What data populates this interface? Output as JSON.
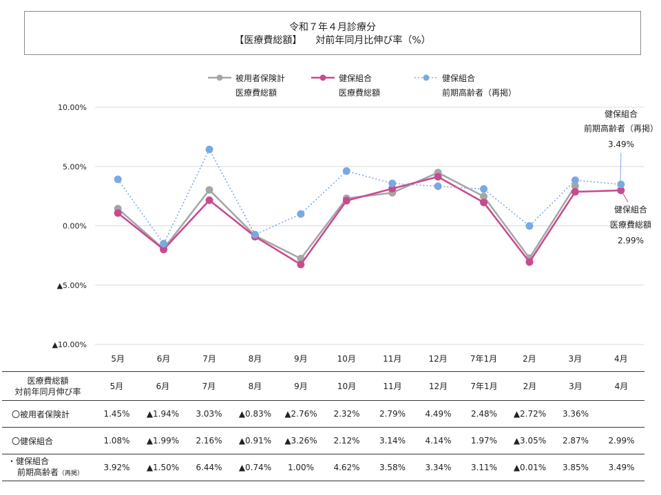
{
  "title": {
    "line1": "令和７年４月診療分",
    "line2_part1": "【医療費総額】",
    "line2_part2": "対前年同月比伸び率（%）"
  },
  "chart_data": {
    "type": "line",
    "categories": [
      "5月",
      "6月",
      "7月",
      "8月",
      "9月",
      "10月",
      "11月",
      "12月",
      "7年1月",
      "2月",
      "3月",
      "4月"
    ],
    "ylim": [
      -10,
      10
    ],
    "yticks": [
      10,
      5,
      0,
      -5,
      -10
    ],
    "ytick_labels": [
      "10.00%",
      "5.00%",
      "0.00%",
      "▲5.00%",
      "▲10.00%"
    ],
    "legend_position": "top",
    "grid": true,
    "series": [
      {
        "name_line1": "被用者保険計",
        "name_line2": "医療費総額",
        "style": "solid",
        "color": "#a6a6a6",
        "values": [
          1.45,
          -1.94,
          3.03,
          -0.83,
          -2.76,
          2.32,
          2.79,
          4.49,
          2.48,
          -2.72,
          3.36,
          null
        ]
      },
      {
        "name_line1": "健保組合",
        "name_line2": "医療費総額",
        "style": "solid",
        "color": "#c84a8f",
        "values": [
          1.08,
          -1.99,
          2.16,
          -0.91,
          -3.26,
          2.12,
          3.14,
          4.14,
          1.97,
          -3.05,
          2.87,
          2.99
        ]
      },
      {
        "name_line1": "健保組合",
        "name_line2": "前期高齢者（再掲）",
        "style": "dotted",
        "color": "#7aa9e2",
        "values": [
          3.92,
          -1.5,
          6.44,
          -0.74,
          1.0,
          4.62,
          3.58,
          3.34,
          3.11,
          -0.01,
          3.85,
          3.49
        ]
      }
    ],
    "annotations": [
      {
        "line1": "健保組合",
        "line2": "前期高齢者（再掲）",
        "line3": "3.49%"
      },
      {
        "line1": "健保組合",
        "line2": "医療費総額",
        "line3": "2.99%"
      }
    ]
  },
  "table": {
    "header_label_line1": "医療費総額",
    "header_label_line2": "対前年同月伸び率",
    "columns": [
      "5月",
      "6月",
      "7月",
      "8月",
      "9月",
      "10月",
      "11月",
      "12月",
      "7年1月",
      "2月",
      "3月",
      "4月"
    ],
    "rows": [
      {
        "label": "〇被用者保険計",
        "values": [
          "1.45%",
          "▲1.94%",
          "3.03%",
          "▲0.83%",
          "▲2.76%",
          "2.32%",
          "2.79%",
          "4.49%",
          "2.48%",
          "▲2.72%",
          "3.36%",
          ""
        ]
      },
      {
        "label": "〇健保組合",
        "values": [
          "1.08%",
          "▲1.99%",
          "2.16%",
          "▲0.91%",
          "▲3.26%",
          "2.12%",
          "3.14%",
          "4.14%",
          "1.97%",
          "▲3.05%",
          "2.87%",
          "2.99%"
        ]
      },
      {
        "label_line1": "・健保組合",
        "label_line2": "前期高齢者",
        "label_sub": "（再掲）",
        "values": [
          "3.92%",
          "▲1.50%",
          "6.44%",
          "▲0.74%",
          "1.00%",
          "4.62%",
          "3.58%",
          "3.34%",
          "3.11%",
          "▲0.01%",
          "3.85%",
          "3.49%"
        ]
      }
    ]
  }
}
